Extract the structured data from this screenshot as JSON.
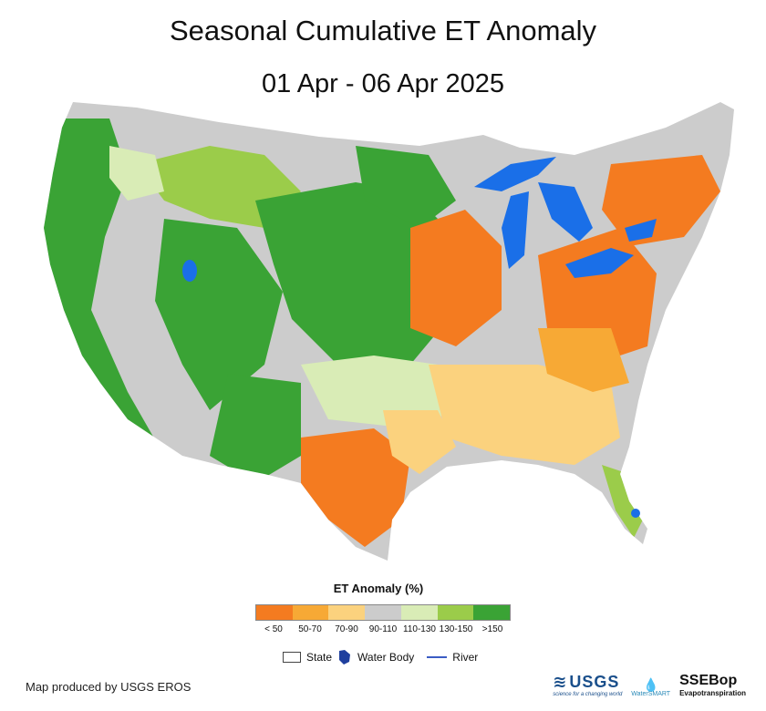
{
  "title": "Seasonal Cumulative ET Anomaly",
  "subtitle": "01 Apr - 06 Apr 2025",
  "legend": {
    "title": "ET Anomaly (%)",
    "classes": [
      {
        "label": "< 50",
        "color": "#f47b20"
      },
      {
        "label": "50-70",
        "color": "#f7a935"
      },
      {
        "label": "70-90",
        "color": "#fbd27e"
      },
      {
        "label": "90-110",
        "color": "#cccccc"
      },
      {
        "label": "110-130",
        "color": "#d9ecb6"
      },
      {
        "label": "130-150",
        "color": "#9bcc4a"
      },
      {
        "label": ">150",
        "color": "#3aa335"
      }
    ]
  },
  "symbols": {
    "state": "State",
    "water": "Water Body",
    "river": "River"
  },
  "credit": "Map produced by USGS EROS",
  "logos": {
    "usgs": "USGS",
    "usgs_tag": "science for a changing world",
    "watersmart": "WaterSMART",
    "ssebop": "SSEBop",
    "ssebop_sub": "Evapotranspiration"
  },
  "colors": {
    "water": "#1a6fe8",
    "river": "#3b5cc4",
    "land_default": "#cccccc"
  }
}
